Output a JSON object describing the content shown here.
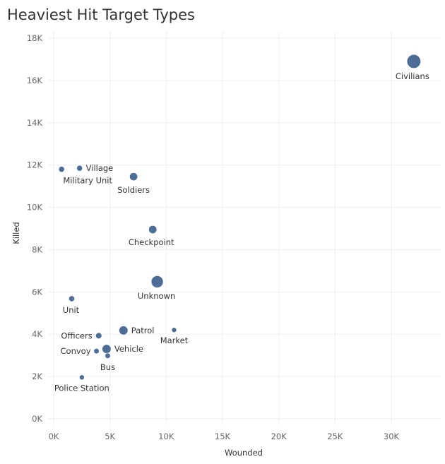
{
  "chart_data": {
    "type": "scatter",
    "title": "Heaviest Hit Target Types",
    "xlabel": "Wounded",
    "ylabel": "Killed",
    "xlim": [
      -500,
      34500
    ],
    "ylim": [
      0,
      18000
    ],
    "xticks": [
      0,
      5000,
      10000,
      15000,
      20000,
      25000,
      30000
    ],
    "xtick_labels": [
      "0K",
      "5K",
      "10K",
      "15K",
      "20K",
      "25K",
      "30K"
    ],
    "yticks": [
      0,
      2000,
      4000,
      6000,
      8000,
      10000,
      12000,
      14000,
      16000,
      18000
    ],
    "ytick_labels": [
      "0K",
      "2K",
      "4K",
      "6K",
      "8K",
      "10K",
      "12K",
      "14K",
      "16K",
      "18K"
    ],
    "grid": true,
    "marker_color": "#4e6d96",
    "points": [
      {
        "name": "Civilians",
        "x": 32000,
        "y": 16900,
        "size": 3
      },
      {
        "name": "Military Unit",
        "x": 700,
        "y": 11800,
        "size": 1
      },
      {
        "name": "Village",
        "x": 2300,
        "y": 11850,
        "size": 1
      },
      {
        "name": "Soldiers",
        "x": 7100,
        "y": 11450,
        "size": 1.6
      },
      {
        "name": "Checkpoint",
        "x": 8800,
        "y": 8950,
        "size": 1.6
      },
      {
        "name": "Unknown",
        "x": 9200,
        "y": 6480,
        "size": 2.6
      },
      {
        "name": "Unit",
        "x": 1600,
        "y": 5680,
        "size": 1
      },
      {
        "name": "Patrol",
        "x": 6200,
        "y": 4180,
        "size": 1.8
      },
      {
        "name": "Market",
        "x": 10700,
        "y": 4200,
        "size": 0.8
      },
      {
        "name": "Officers",
        "x": 4000,
        "y": 3930,
        "size": 1.1
      },
      {
        "name": "Vehicle",
        "x": 4700,
        "y": 3300,
        "size": 1.8
      },
      {
        "name": "Convoy",
        "x": 3800,
        "y": 3200,
        "size": 0.9
      },
      {
        "name": "Bus",
        "x": 4800,
        "y": 2980,
        "size": 0.9
      },
      {
        "name": "Police Station",
        "x": 2500,
        "y": 1960,
        "size": 0.8
      }
    ]
  }
}
